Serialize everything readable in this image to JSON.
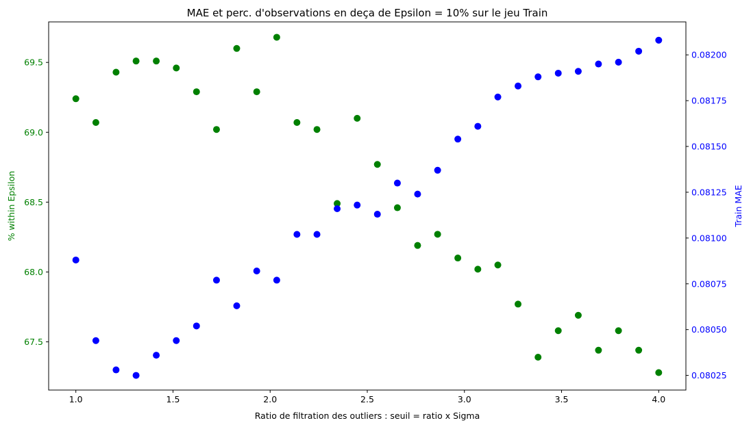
{
  "chart_data": {
    "type": "scatter",
    "title": "MAE et perc. d'observations en deça de Epsilon = 10% sur le jeu Train",
    "xlabel": "Ratio de filtration des outliers : seuil = ratio x Sigma",
    "xlim": [
      0.86,
      4.14
    ],
    "xticks": [
      "1.0",
      "1.5",
      "2.0",
      "2.5",
      "3.0",
      "3.5",
      "4.0"
    ],
    "y_left": {
      "label": "% within Epsilon",
      "color": "#008000",
      "ylim": [
        67.155,
        69.79
      ],
      "ticks": [
        "67.5",
        "68.0",
        "68.5",
        "69.0",
        "69.5"
      ]
    },
    "y_right": {
      "label": "Train MAE",
      "color": "#0000ff",
      "ylim": [
        0.08017,
        0.08218
      ],
      "ticks": [
        "0.08025",
        "0.08050",
        "0.08075",
        "0.08100",
        "0.08125",
        "0.08150",
        "0.08175",
        "0.08200"
      ]
    },
    "series": [
      {
        "axis": "left",
        "color": "#008000",
        "x": [
          1.0,
          1.103,
          1.207,
          1.31,
          1.414,
          1.517,
          1.621,
          1.724,
          1.828,
          1.931,
          2.034,
          2.138,
          2.241,
          2.345,
          2.448,
          2.552,
          2.655,
          2.759,
          2.862,
          2.966,
          3.069,
          3.172,
          3.276,
          3.379,
          3.483,
          3.586,
          3.69,
          3.793,
          3.897,
          4.0
        ],
        "values": [
          69.24,
          69.07,
          69.43,
          69.51,
          69.51,
          69.46,
          69.29,
          69.02,
          69.6,
          69.29,
          69.68,
          69.07,
          69.02,
          68.49,
          69.1,
          68.77,
          68.46,
          68.19,
          68.27,
          68.1,
          68.02,
          68.05,
          67.77,
          67.39,
          67.58,
          67.69,
          67.44,
          67.58,
          67.44,
          67.28
        ]
      },
      {
        "axis": "right",
        "color": "#0000ff",
        "x": [
          1.0,
          1.103,
          1.207,
          1.31,
          1.414,
          1.517,
          1.621,
          1.724,
          1.828,
          1.931,
          2.034,
          2.138,
          2.241,
          2.345,
          2.448,
          2.552,
          2.655,
          2.759,
          2.862,
          2.966,
          3.069,
          3.172,
          3.276,
          3.379,
          3.483,
          3.586,
          3.69,
          3.793,
          3.897,
          4.0
        ],
        "values": [
          0.08088,
          0.08044,
          0.08028,
          0.08025,
          0.08036,
          0.08044,
          0.08052,
          0.08077,
          0.08063,
          0.08082,
          0.08077,
          0.08102,
          0.08102,
          0.08116,
          0.08118,
          0.08113,
          0.0813,
          0.08124,
          0.08137,
          0.08154,
          0.08161,
          0.08177,
          0.08183,
          0.08188,
          0.0819,
          0.08191,
          0.08195,
          0.08196,
          0.08202,
          0.08208
        ]
      }
    ]
  }
}
